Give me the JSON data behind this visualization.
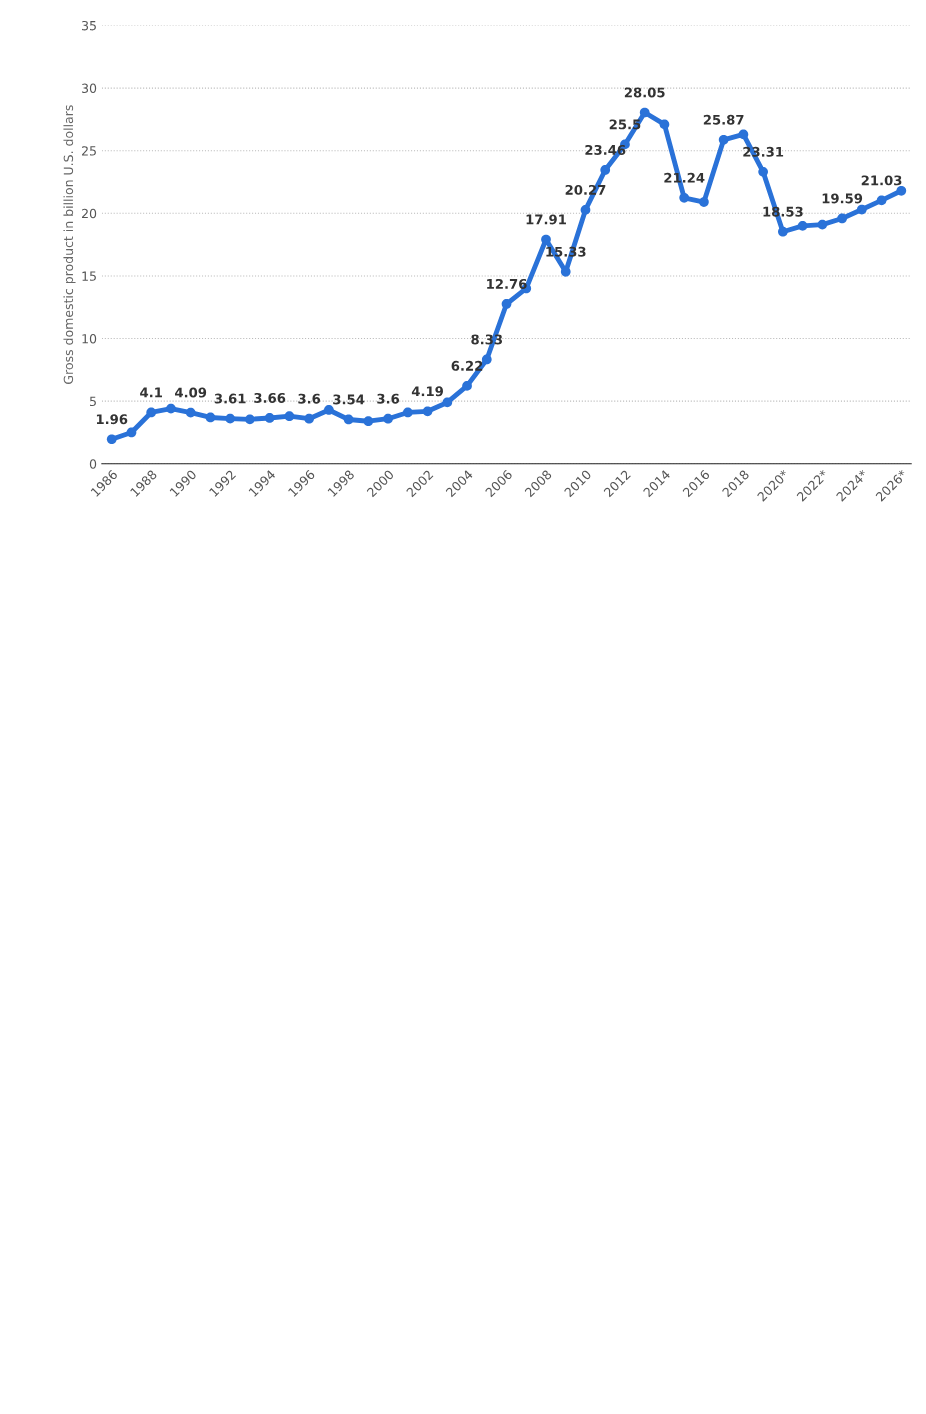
{
  "chart_data": {
    "type": "line",
    "ylabel": "Gross domestic product in billion U.S. dollars",
    "categories": [
      "1986",
      null,
      "1988",
      null,
      "1990",
      null,
      "1992",
      null,
      "1994",
      null,
      "1996",
      null,
      "1998",
      null,
      "2000",
      null,
      "2002",
      null,
      "2004",
      null,
      "2006",
      null,
      "2008",
      null,
      "2010",
      null,
      "2012",
      null,
      "2014",
      null,
      "2016",
      null,
      "2018",
      null,
      "2020*",
      null,
      "2022*",
      null,
      "2024*",
      null,
      "2026*"
    ],
    "series": [
      {
        "color": "#2a72d8",
        "values": [
          1.96,
          2.5,
          4.1,
          4.4,
          4.09,
          3.7,
          3.61,
          3.55,
          3.66,
          3.8,
          3.6,
          4.3,
          3.54,
          3.4,
          3.6,
          4.1,
          4.19,
          4.9,
          6.22,
          8.33,
          12.76,
          14.0,
          17.91,
          15.33,
          20.27,
          23.46,
          25.5,
          28.05,
          27.1,
          21.24,
          20.9,
          25.87,
          26.3,
          23.31,
          18.53,
          19.0,
          19.1,
          19.59,
          20.3,
          21.03,
          21.8
        ],
        "value_labels": [
          "1.96",
          null,
          "4.1",
          null,
          "4.09",
          null,
          "3.61",
          null,
          "3.66",
          null,
          "3.6",
          null,
          "3.54",
          null,
          "3.6",
          null,
          "4.19",
          null,
          "6.22",
          "8.33",
          "12.76",
          null,
          "17.91",
          "15.33",
          "20.27",
          "23.46",
          "25.5",
          "28.05",
          null,
          "21.24",
          null,
          "25.87",
          null,
          "23.31",
          "18.53",
          null,
          null,
          "19.59",
          null,
          "21.03",
          null
        ]
      }
    ],
    "ylim": [
      0,
      35
    ],
    "yticks": [
      0,
      5,
      10,
      15,
      20,
      25,
      30,
      35
    ],
    "grid": "y",
    "marker": "circle",
    "line_style": "solid"
  }
}
